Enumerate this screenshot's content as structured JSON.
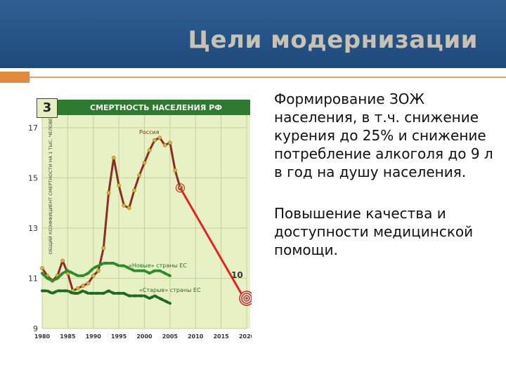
{
  "slide": {
    "title": "Цели модернизации",
    "number": "3",
    "bullets": [
      "Формирование ЗОЖ населения, в т.ч. снижение курения до 25% и снижение потребление алкоголя до 9 л в год на душу населения.",
      "Повышение качества и доступности медицинской помощи."
    ]
  },
  "chart_data": {
    "type": "line",
    "title": "СМЕРТНОСТЬ НАСЕЛЕНИЯ РФ",
    "ylabel": "ОБЩИЙ КОЭФФИЦИЕНТ СМЕРТНОСТИ НА 1 ТЫС. ЧЕЛОВЕК",
    "xlabel": "",
    "xlim": [
      1980,
      2020
    ],
    "ylim": [
      9,
      17.5
    ],
    "x_ticks": [
      1980,
      1985,
      1990,
      1995,
      2000,
      2005,
      2010,
      2015,
      2020
    ],
    "y_ticks": [
      9,
      11,
      13,
      15,
      17
    ],
    "grid": true,
    "colors": {
      "russia": "#8b2e22",
      "new_eu": "#2e8b2a",
      "old_eu": "#1f6a22",
      "target": "#e82222",
      "background": "#e8f0c5",
      "header": "#2e7a2e"
    },
    "series": [
      {
        "name": "Россия",
        "x": [
          1980,
          1981,
          1982,
          1983,
          1984,
          1985,
          1986,
          1987,
          1988,
          1989,
          1990,
          1991,
          1992,
          1993,
          1994,
          1995,
          1996,
          1997,
          1998,
          1999,
          2000,
          2001,
          2002,
          2003,
          2004,
          2005,
          2006,
          2007
        ],
        "values": [
          11.4,
          11.1,
          10.9,
          11.1,
          11.7,
          11.2,
          10.5,
          10.6,
          10.7,
          10.8,
          11.1,
          11.3,
          12.2,
          14.4,
          15.8,
          14.7,
          13.9,
          13.8,
          14.5,
          15.1,
          15.6,
          16.1,
          16.5,
          16.6,
          16.3,
          16.4,
          15.3,
          14.6
        ]
      },
      {
        "name": "«Новые» страны ЕС",
        "x": [
          1980,
          1981,
          1982,
          1983,
          1984,
          1985,
          1986,
          1987,
          1988,
          1989,
          1990,
          1991,
          1992,
          1993,
          1994,
          1995,
          1996,
          1997,
          1998,
          1999,
          2000,
          2001,
          2002,
          2003,
          2004,
          2005
        ],
        "values": [
          11.2,
          11.0,
          10.9,
          11.0,
          11.2,
          11.3,
          11.2,
          11.1,
          11.1,
          11.2,
          11.4,
          11.5,
          11.6,
          11.6,
          11.6,
          11.5,
          11.5,
          11.4,
          11.3,
          11.3,
          11.3,
          11.2,
          11.3,
          11.3,
          11.2,
          11.1
        ]
      },
      {
        "name": "«Старые» страны ЕС",
        "x": [
          1980,
          1981,
          1982,
          1983,
          1984,
          1985,
          1986,
          1987,
          1988,
          1989,
          1990,
          1991,
          1992,
          1993,
          1994,
          1995,
          1996,
          1997,
          1998,
          1999,
          2000,
          2001,
          2002,
          2003,
          2004,
          2005
        ],
        "values": [
          10.5,
          10.5,
          10.4,
          10.5,
          10.5,
          10.5,
          10.4,
          10.4,
          10.5,
          10.4,
          10.4,
          10.4,
          10.4,
          10.5,
          10.4,
          10.4,
          10.4,
          10.3,
          10.3,
          10.3,
          10.3,
          10.2,
          10.3,
          10.2,
          10.1,
          10.0
        ]
      }
    ],
    "target": {
      "x_from": 2007,
      "y_from": 14.6,
      "x_to": 2020,
      "y_to": 10.2,
      "label": "10"
    }
  }
}
